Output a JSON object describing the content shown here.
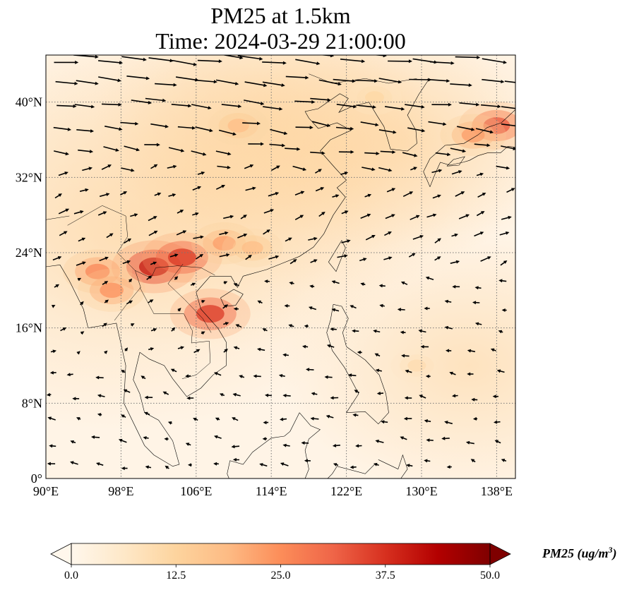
{
  "title": {
    "line1": "PM25 at 1.5km",
    "line2": "Time: 2024-03-29 21:00:00"
  },
  "map": {
    "projection": "PlateCarree",
    "lon_range": [
      90,
      140
    ],
    "lat_range": [
      0,
      45
    ],
    "lon_ticks": [
      {
        "value": 90,
        "label": "90°E"
      },
      {
        "value": 98,
        "label": "98°E"
      },
      {
        "value": 106,
        "label": "106°E"
      },
      {
        "value": 114,
        "label": "114°E"
      },
      {
        "value": 122,
        "label": "122°E"
      },
      {
        "value": 130,
        "label": "130°E"
      },
      {
        "value": 138,
        "label": "138°E"
      }
    ],
    "lat_ticks": [
      {
        "value": 0,
        "label": "0°"
      },
      {
        "value": 8,
        "label": "8°N"
      },
      {
        "value": 16,
        "label": "16°N"
      },
      {
        "value": 24,
        "label": "24°N"
      },
      {
        "value": 32,
        "label": "32°N"
      },
      {
        "value": 40,
        "label": "40°N"
      }
    ],
    "gridlines": true,
    "gridline_style": "dotted",
    "overlay": "wind vectors (quiver)"
  },
  "colorbar": {
    "colormap": "OrRd",
    "min": 0.0,
    "max": 50.0,
    "extend": "both",
    "ticks": [
      "0.0",
      "12.5",
      "25.0",
      "37.5",
      "50.0"
    ],
    "label_main": "PM25 (ug/m",
    "label_sup": "3",
    "label_end": ")",
    "stops": [
      "#fff7ec",
      "#fee8c8",
      "#fdd49e",
      "#fdbb84",
      "#fc8d59",
      "#ef6548",
      "#d7301f",
      "#b30000",
      "#7f0000"
    ]
  },
  "chart_data": {
    "type": "heatmap",
    "variable": "PM25",
    "units": "ug/m3",
    "level": "1.5km",
    "time": "2024-03-29 21:00:00",
    "hotspots": [
      {
        "lon": 101.5,
        "lat": 22.5,
        "value": 50
      },
      {
        "lon": 104.5,
        "lat": 23.5,
        "value": 45
      },
      {
        "lon": 107.5,
        "lat": 17.5,
        "value": 45
      },
      {
        "lon": 95.5,
        "lat": 22,
        "value": 32
      },
      {
        "lon": 97,
        "lat": 20,
        "value": 30
      },
      {
        "lon": 109,
        "lat": 25,
        "value": 28
      },
      {
        "lon": 112,
        "lat": 24.5,
        "value": 22
      },
      {
        "lon": 110.5,
        "lat": 37.5,
        "value": 22
      },
      {
        "lon": 138,
        "lat": 37.5,
        "value": 40
      },
      {
        "lon": 135.5,
        "lat": 36.5,
        "value": 28
      },
      {
        "lon": 125,
        "lat": 40.5,
        "value": 14
      },
      {
        "lon": 129.5,
        "lat": 12,
        "value": 12
      }
    ]
  }
}
